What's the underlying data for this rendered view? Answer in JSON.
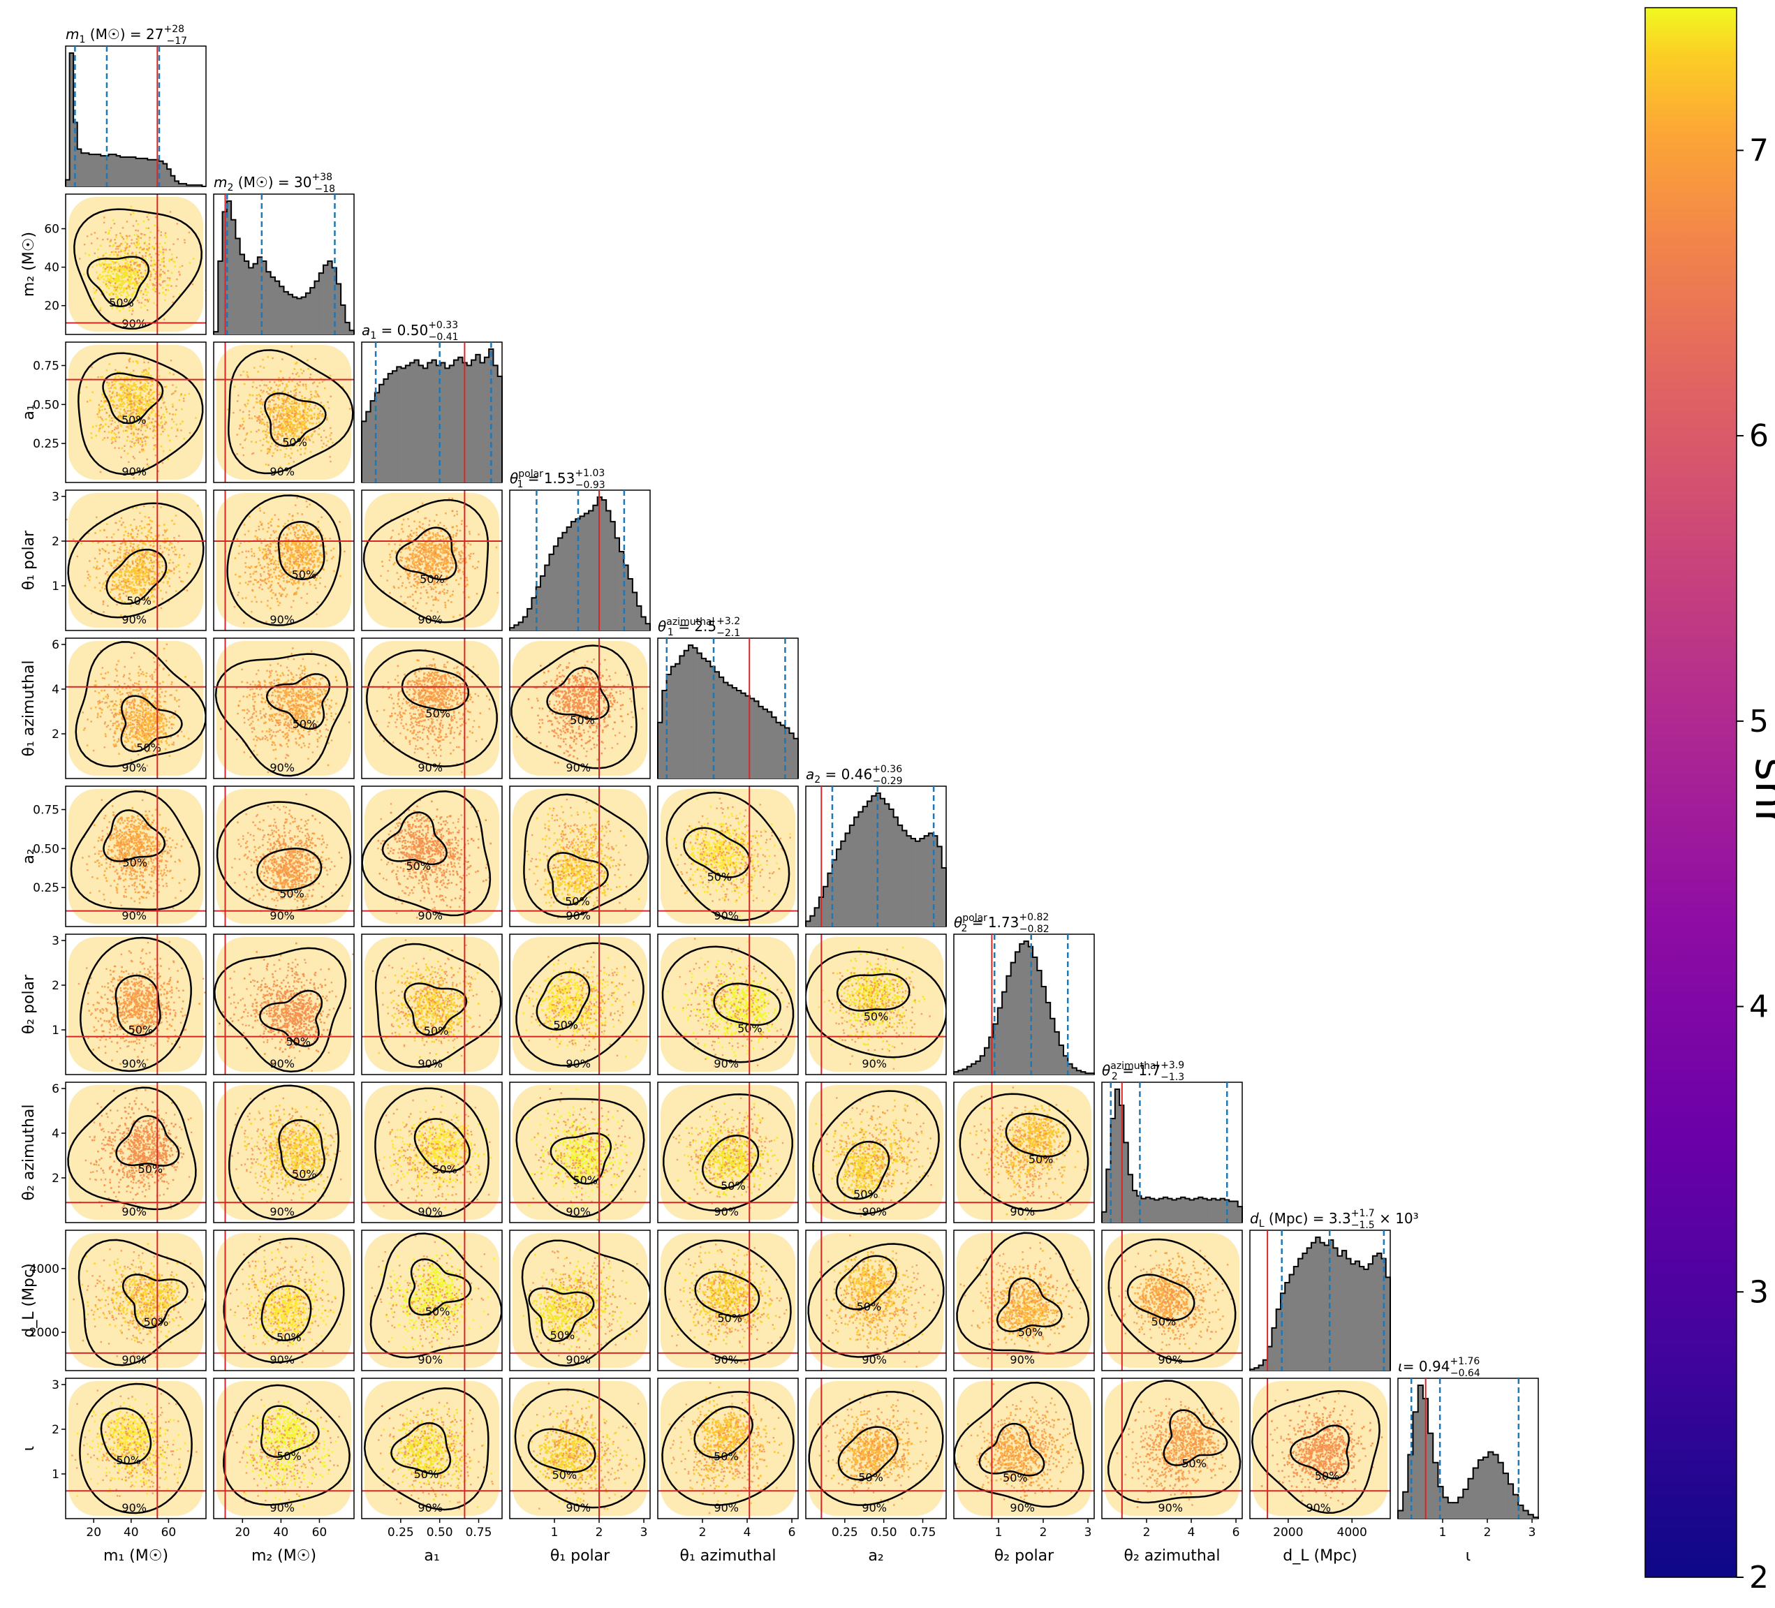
{
  "chart_data": {
    "type": "corner",
    "colorbar": {
      "label": "snr",
      "range": [
        2,
        7.5
      ],
      "ticks": [
        "2",
        "3",
        "4",
        "5",
        "6",
        "7"
      ],
      "colormap": "plasma"
    },
    "parameters": [
      {
        "key": "m1",
        "title_symbol": "m",
        "title_sub": "1",
        "title_unit": "(M☉)",
        "title_value": "27",
        "title_plus": "+28",
        "title_minus": "−17",
        "axis_label": "m₁ (M☉)",
        "range": [
          5,
          80
        ],
        "ticks": [
          20,
          40,
          60
        ],
        "tick_labels": [
          "20",
          "40",
          "60"
        ],
        "truth": 54,
        "quantiles": [
          10,
          27,
          55
        ],
        "hist": [
          5,
          100,
          48,
          28,
          25,
          25,
          24,
          24,
          24,
          23,
          23,
          24,
          24,
          23,
          22,
          22,
          22,
          22,
          21,
          21,
          21,
          20,
          20,
          20,
          19,
          17,
          13,
          8,
          4,
          2,
          2,
          1,
          1,
          1,
          1,
          0
        ]
      },
      {
        "key": "m2",
        "title_symbol": "m",
        "title_sub": "2",
        "title_unit": "(M☉)",
        "title_value": "30",
        "title_plus": "+38",
        "title_minus": "−18",
        "axis_label": "m₂ (M☉)",
        "range": [
          5,
          78
        ],
        "ticks": [
          20,
          40,
          60
        ],
        "tick_labels": [
          "20",
          "40",
          "60"
        ],
        "truth": 11,
        "quantiles": [
          12,
          30,
          68
        ],
        "hist": [
          2,
          55,
          92,
          100,
          86,
          72,
          60,
          55,
          50,
          53,
          58,
          55,
          47,
          43,
          40,
          36,
          32,
          30,
          28,
          27,
          28,
          31,
          35,
          40,
          46,
          52,
          55,
          50,
          38,
          22,
          9,
          3
        ]
      },
      {
        "key": "a1",
        "title_symbol": "a",
        "title_sub": "1",
        "title_unit": "",
        "title_value": "0.50",
        "title_plus": "+0.33",
        "title_minus": "−0.41",
        "axis_label": "a₁",
        "range": [
          0,
          0.9
        ],
        "ticks": [
          0.25,
          0.5,
          0.75
        ],
        "tick_labels": [
          "0.25",
          "0.50",
          "0.75"
        ],
        "truth": 0.66,
        "quantiles": [
          0.09,
          0.5,
          0.83
        ],
        "hist": [
          45,
          52,
          60,
          66,
          72,
          76,
          80,
          82,
          85,
          84,
          86,
          88,
          90,
          86,
          84,
          88,
          90,
          86,
          88,
          84,
          86,
          90,
          92,
          88,
          86,
          90,
          94,
          88,
          92,
          98,
          86,
          78
        ]
      },
      {
        "key": "theta1p",
        "title_symbol": "θ",
        "title_sub": "1",
        "title_sup": "polar",
        "title_unit": "",
        "title_value": "1.53",
        "title_plus": "+1.03",
        "title_minus": "−0.93",
        "axis_label": "θ₁ polar",
        "range": [
          0,
          3.14
        ],
        "ticks": [
          1,
          2,
          3
        ],
        "tick_labels": [
          "1",
          "2",
          "3"
        ],
        "truth": 2.0,
        "quantiles": [
          0.6,
          1.53,
          2.56
        ],
        "hist": [
          2,
          4,
          6,
          10,
          16,
          24,
          32,
          40,
          48,
          56,
          62,
          68,
          72,
          76,
          80,
          82,
          84,
          86,
          88,
          92,
          98,
          96,
          88,
          80,
          68,
          58,
          48,
          38,
          28,
          18,
          10,
          5
        ]
      },
      {
        "key": "theta1a",
        "title_symbol": "θ",
        "title_sub": "1",
        "title_sup": "azimuthal",
        "title_unit": "",
        "title_value": "2.5",
        "title_plus": "+3.2",
        "title_minus": "−2.1",
        "axis_label": "θ₁ azimuthal",
        "range": [
          0,
          6.28
        ],
        "ticks": [
          2,
          4,
          6
        ],
        "tick_labels": [
          "2",
          "4",
          "6"
        ],
        "truth": 4.1,
        "quantiles": [
          0.4,
          2.5,
          5.7
        ],
        "hist": [
          42,
          66,
          78,
          84,
          86,
          92,
          96,
          100,
          98,
          94,
          90,
          88,
          84,
          80,
          76,
          72,
          70,
          68,
          66,
          64,
          62,
          60,
          58,
          54,
          52,
          50,
          46,
          42,
          40,
          38,
          34,
          30
        ]
      },
      {
        "key": "a2",
        "title_symbol": "a",
        "title_sub": "2",
        "title_unit": "",
        "title_value": "0.46",
        "title_plus": "+0.36",
        "title_minus": "−0.29",
        "axis_label": "a₂",
        "range": [
          0,
          0.9
        ],
        "ticks": [
          0.25,
          0.5,
          0.75
        ],
        "tick_labels": [
          "0.25",
          "0.50",
          "0.75"
        ],
        "truth": 0.1,
        "quantiles": [
          0.17,
          0.46,
          0.82
        ],
        "hist": [
          4,
          8,
          14,
          22,
          30,
          40,
          50,
          58,
          64,
          70,
          76,
          82,
          86,
          90,
          94,
          98,
          100,
          96,
          92,
          88,
          82,
          76,
          72,
          68,
          66,
          64,
          66,
          68,
          70,
          68,
          60,
          44
        ]
      },
      {
        "key": "theta2p",
        "title_symbol": "θ",
        "title_sub": "2",
        "title_sup": "polar",
        "title_unit": "",
        "title_value": "1.73",
        "title_plus": "+0.82",
        "title_minus": "−0.82",
        "axis_label": "θ₂ polar",
        "range": [
          0,
          3.14
        ],
        "ticks": [
          1,
          2,
          3
        ],
        "tick_labels": [
          "1",
          "2",
          "3"
        ],
        "truth": 0.85,
        "quantiles": [
          0.91,
          1.73,
          2.55
        ],
        "hist": [
          2,
          3,
          4,
          6,
          8,
          10,
          14,
          20,
          28,
          38,
          50,
          62,
          74,
          84,
          92,
          98,
          100,
          96,
          88,
          78,
          66,
          54,
          42,
          32,
          22,
          14,
          8,
          5,
          3,
          2,
          1,
          1
        ]
      },
      {
        "key": "theta2a",
        "title_symbol": "θ",
        "title_sub": "2",
        "title_sup": "azimuthal",
        "title_unit": "",
        "title_value": "1.7",
        "title_plus": "+3.9",
        "title_minus": "−1.3",
        "axis_label": "θ₂ azimuthal",
        "range": [
          0,
          6.28
        ],
        "ticks": [
          2,
          4,
          6
        ],
        "tick_labels": [
          "2",
          "4",
          "6"
        ],
        "truth": 0.9,
        "quantiles": [
          0.4,
          1.7,
          5.6
        ],
        "hist": [
          8,
          40,
          78,
          100,
          88,
          60,
          36,
          24,
          20,
          18,
          19,
          18,
          17,
          18,
          19,
          18,
          17,
          18,
          19,
          18,
          17,
          18,
          19,
          18,
          17,
          18,
          17,
          18,
          17,
          16,
          16,
          12
        ]
      },
      {
        "key": "dl",
        "title_symbol": "d",
        "title_sub": "L",
        "title_unit": "(Mpc)",
        "title_value": "3.3",
        "title_plus": "+1.7",
        "title_minus": "−1.5",
        "title_suffix": "× 10³",
        "axis_label": "d_L (Mpc)",
        "range": [
          800,
          5200
        ],
        "ticks": [
          2000,
          4000
        ],
        "tick_labels": [
          "2000",
          "4000"
        ],
        "truth": 1350,
        "quantiles": [
          1800,
          3300,
          5000
        ],
        "hist": [
          1,
          2,
          4,
          8,
          18,
          32,
          46,
          58,
          66,
          72,
          78,
          84,
          88,
          92,
          96,
          100,
          96,
          94,
          98,
          92,
          86,
          90,
          84,
          80,
          82,
          78,
          76,
          80,
          86,
          88,
          84,
          70
        ]
      },
      {
        "key": "iota",
        "title_symbol": "ι",
        "title_sub": "",
        "title_unit": "",
        "title_value": "0.94",
        "title_plus": "+1.76",
        "title_minus": "−0.64",
        "axis_label": "ι",
        "range": [
          0,
          3.14
        ],
        "ticks": [
          1,
          2,
          3
        ],
        "tick_labels": [
          "1",
          "2",
          "3"
        ],
        "truth": 0.62,
        "quantiles": [
          0.3,
          0.94,
          2.7
        ],
        "hist": [
          6,
          20,
          48,
          80,
          100,
          90,
          64,
          42,
          24,
          16,
          12,
          12,
          16,
          22,
          30,
          38,
          44,
          46,
          50,
          48,
          42,
          34,
          26,
          18,
          10,
          6,
          3,
          1
        ]
      }
    ],
    "contour_labels": [
      "50%",
      "90%"
    ],
    "truth_color": "#d62728",
    "quantile_color": "#1f77b4",
    "hist_fill": "#7f7f7f"
  }
}
